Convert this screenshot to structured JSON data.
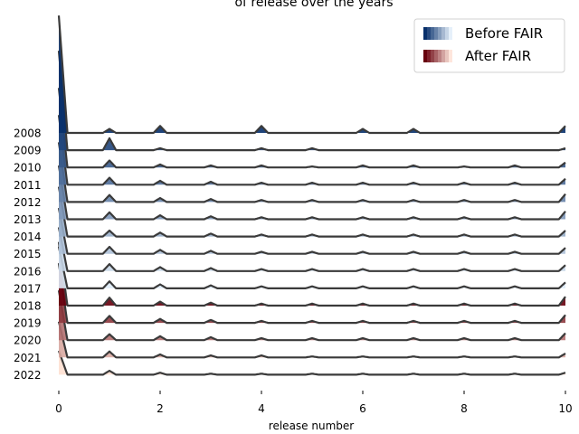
{
  "chart_data": {
    "type": "area",
    "title": "of release over the years",
    "xlabel": "release number",
    "ylabel": "",
    "xlim": [
      0,
      10
    ],
    "x_ticks": [
      "0",
      "2",
      "4",
      "6",
      "8",
      "10"
    ],
    "legend": {
      "placement": "top-right",
      "entries": [
        {
          "label": "Before FAIR",
          "colormap": "Blues"
        },
        {
          "label": "After FAIR",
          "colormap": "Reds"
        }
      ]
    },
    "fair_year": 2018,
    "series": [
      {
        "year": "2008",
        "group": "Before FAIR",
        "x0_peak": 5.9,
        "peaks": [
          [
            1,
            0.2
          ],
          [
            2,
            0.35
          ],
          [
            4,
            0.35
          ],
          [
            6,
            0.2
          ],
          [
            7,
            0.2
          ],
          [
            10,
            0.35
          ]
        ]
      },
      {
        "year": "2009",
        "group": "Before FAIR",
        "x0_peak": 5.0,
        "peaks": [
          [
            1,
            0.6
          ],
          [
            2,
            0.1
          ],
          [
            4,
            0.1
          ],
          [
            5,
            0.1
          ],
          [
            10,
            0.1
          ]
        ]
      },
      {
        "year": "2010",
        "group": "Before FAIR",
        "x0_peak": 4.0,
        "peaks": [
          [
            1,
            0.35
          ],
          [
            2,
            0.15
          ],
          [
            3,
            0.1
          ],
          [
            4,
            0.1
          ],
          [
            5,
            0.05
          ],
          [
            6,
            0.1
          ],
          [
            7,
            0.1
          ],
          [
            8,
            0.05
          ],
          [
            9,
            0.1
          ],
          [
            10,
            0.25
          ]
        ]
      },
      {
        "year": "2011",
        "group": "Before FAIR",
        "x0_peak": 3.5,
        "peaks": [
          [
            1,
            0.35
          ],
          [
            2,
            0.2
          ],
          [
            3,
            0.15
          ],
          [
            4,
            0.1
          ],
          [
            5,
            0.1
          ],
          [
            6,
            0.1
          ],
          [
            7,
            0.1
          ],
          [
            8,
            0.1
          ],
          [
            9,
            0.1
          ],
          [
            10,
            0.3
          ]
        ]
      },
      {
        "year": "2012",
        "group": "Before FAIR",
        "x0_peak": 3.0,
        "peaks": [
          [
            1,
            0.35
          ],
          [
            2,
            0.2
          ],
          [
            3,
            0.15
          ],
          [
            4,
            0.1
          ],
          [
            5,
            0.1
          ],
          [
            6,
            0.1
          ],
          [
            7,
            0.1
          ],
          [
            8,
            0.1
          ],
          [
            9,
            0.1
          ],
          [
            10,
            0.4
          ]
        ]
      },
      {
        "year": "2013",
        "group": "Before FAIR",
        "x0_peak": 2.7,
        "peaks": [
          [
            1,
            0.35
          ],
          [
            2,
            0.2
          ],
          [
            3,
            0.15
          ],
          [
            4,
            0.1
          ],
          [
            5,
            0.1
          ],
          [
            6,
            0.1
          ],
          [
            7,
            0.1
          ],
          [
            8,
            0.1
          ],
          [
            9,
            0.1
          ],
          [
            10,
            0.4
          ]
        ]
      },
      {
        "year": "2014",
        "group": "Before FAIR",
        "x0_peak": 2.5,
        "peaks": [
          [
            1,
            0.3
          ],
          [
            2,
            0.2
          ],
          [
            3,
            0.15
          ],
          [
            4,
            0.1
          ],
          [
            5,
            0.1
          ],
          [
            6,
            0.1
          ],
          [
            7,
            0.1
          ],
          [
            8,
            0.1
          ],
          [
            9,
            0.1
          ],
          [
            10,
            0.3
          ]
        ]
      },
      {
        "year": "2015",
        "group": "Before FAIR",
        "x0_peak": 2.3,
        "peaks": [
          [
            1,
            0.35
          ],
          [
            2,
            0.2
          ],
          [
            3,
            0.15
          ],
          [
            4,
            0.1
          ],
          [
            5,
            0.1
          ],
          [
            6,
            0.1
          ],
          [
            7,
            0.1
          ],
          [
            8,
            0.1
          ],
          [
            9,
            0.1
          ],
          [
            10,
            0.3
          ]
        ]
      },
      {
        "year": "2016",
        "group": "Before FAIR",
        "x0_peak": 2.2,
        "peaks": [
          [
            1,
            0.35
          ],
          [
            2,
            0.2
          ],
          [
            3,
            0.15
          ],
          [
            4,
            0.1
          ],
          [
            5,
            0.1
          ],
          [
            6,
            0.1
          ],
          [
            7,
            0.1
          ],
          [
            8,
            0.1
          ],
          [
            9,
            0.1
          ],
          [
            10,
            0.3
          ]
        ]
      },
      {
        "year": "2017",
        "group": "Before FAIR",
        "x0_peak": 2.1,
        "peaks": [
          [
            1,
            0.35
          ],
          [
            2,
            0.2
          ],
          [
            3,
            0.15
          ],
          [
            4,
            0.1
          ],
          [
            5,
            0.1
          ],
          [
            6,
            0.1
          ],
          [
            7,
            0.1
          ],
          [
            8,
            0.1
          ],
          [
            9,
            0.1
          ],
          [
            10,
            0.3
          ]
        ]
      },
      {
        "year": "2018",
        "group": "After FAIR",
        "x0_peak": 3.2,
        "peaks": [
          [
            1,
            0.4
          ],
          [
            2,
            0.2
          ],
          [
            3,
            0.15
          ],
          [
            4,
            0.1
          ],
          [
            5,
            0.1
          ],
          [
            6,
            0.1
          ],
          [
            7,
            0.1
          ],
          [
            8,
            0.1
          ],
          [
            9,
            0.1
          ],
          [
            10,
            0.45
          ]
        ]
      },
      {
        "year": "2019",
        "group": "After FAIR",
        "x0_peak": 3.0,
        "peaks": [
          [
            1,
            0.35
          ],
          [
            2,
            0.2
          ],
          [
            3,
            0.15
          ],
          [
            4,
            0.1
          ],
          [
            5,
            0.1
          ],
          [
            6,
            0.1
          ],
          [
            7,
            0.1
          ],
          [
            8,
            0.1
          ],
          [
            9,
            0.1
          ],
          [
            10,
            0.4
          ]
        ]
      },
      {
        "year": "2020",
        "group": "After FAIR",
        "x0_peak": 2.5,
        "peaks": [
          [
            1,
            0.3
          ],
          [
            2,
            0.2
          ],
          [
            3,
            0.15
          ],
          [
            4,
            0.1
          ],
          [
            5,
            0.1
          ],
          [
            6,
            0.1
          ],
          [
            7,
            0.1
          ],
          [
            8,
            0.1
          ],
          [
            9,
            0.1
          ],
          [
            10,
            0.35
          ]
        ]
      },
      {
        "year": "2021",
        "group": "After FAIR",
        "x0_peak": 1.8,
        "peaks": [
          [
            1,
            0.3
          ],
          [
            2,
            0.15
          ],
          [
            3,
            0.1
          ],
          [
            4,
            0.1
          ],
          [
            5,
            0.05
          ],
          [
            6,
            0.05
          ],
          [
            7,
            0.05
          ],
          [
            8,
            0.05
          ],
          [
            9,
            0.05
          ],
          [
            10,
            0.2
          ]
        ]
      },
      {
        "year": "2022",
        "group": "After FAIR",
        "x0_peak": 1.2,
        "peaks": [
          [
            1,
            0.2
          ],
          [
            2,
            0.1
          ],
          [
            3,
            0.05
          ],
          [
            4,
            0.05
          ],
          [
            5,
            0.05
          ],
          [
            6,
            0.05
          ],
          [
            7,
            0.05
          ],
          [
            8,
            0.05
          ],
          [
            9,
            0.05
          ],
          [
            10,
            0.1
          ]
        ]
      }
    ]
  }
}
